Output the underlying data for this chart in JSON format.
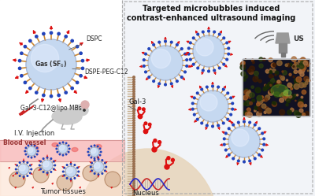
{
  "bg_color": "#f8f8f8",
  "left_bg": "#ffffff",
  "right_bg": "#f2f4f8",
  "title1": "Targeted microbubbles induced",
  "title2": "contrast-enhanced ultrasound imaging",
  "label_dspc": "DSPC",
  "label_dspe": "DSPE-PEG-C12",
  "label_gal3lipo": "Gal-3-C12@lipo MBs",
  "label_iv": "I.V. Injection",
  "label_blood": "Blood vessel",
  "label_tumor": "Tumor tissues",
  "label_gal3": "Gal-3",
  "label_nucleus": "Nucleus",
  "label_us": "US",
  "bubble_fill": "#c5d8f0",
  "bubble_edge": "#99aacc",
  "red_col": "#dd1111",
  "blue_col": "#2244bb",
  "orange_col": "#cc8833",
  "blood_col": "#f8b8b8",
  "tumor_col": "#fce0d0",
  "cell_col": "#e8d8c0",
  "membrane_col": "#c8b090",
  "dna_red": "#cc2222",
  "dna_blue": "#2222cc",
  "text_col": "#222222",
  "sep_col": "#aaaaaa"
}
